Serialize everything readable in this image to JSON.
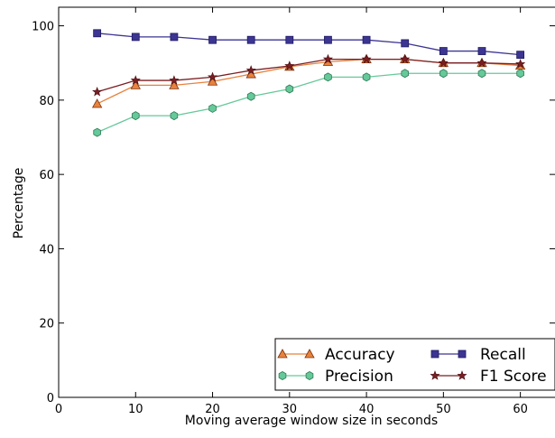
{
  "chart_data": {
    "type": "line",
    "title": "",
    "xlabel": "Moving average window size in seconds",
    "ylabel": "Percentage",
    "xlim": [
      0,
      60
    ],
    "ylim": [
      0,
      105
    ],
    "xticks": [
      0,
      10,
      20,
      30,
      40,
      50,
      60
    ],
    "yticks": [
      0,
      20,
      40,
      60,
      80,
      100
    ],
    "x_tick_labels": [
      "0",
      "10",
      "20",
      "30",
      "40",
      "50",
      "60"
    ],
    "y_tick_labels": [
      "0",
      "20",
      "40",
      "60",
      "80",
      "100"
    ],
    "grid": false,
    "legend_position": "bottom-right",
    "x": [
      5,
      10,
      15,
      20,
      25,
      30,
      35,
      40,
      45,
      50,
      55,
      60
    ],
    "series": [
      {
        "name": "Accuracy",
        "marker": "triangle",
        "color": "#e8823c",
        "edge_color": "#7a3210",
        "values": [
          79,
          84,
          84,
          85,
          87,
          89,
          90.3,
          91,
          91,
          90,
          90,
          89.3
        ]
      },
      {
        "name": "Recall",
        "marker": "square",
        "color": "#3d3592",
        "edge_color": "#1e1a60",
        "values": [
          98,
          97,
          97,
          96.2,
          96.2,
          96.2,
          96.2,
          96.2,
          95.3,
          93.2,
          93.2,
          92.2
        ]
      },
      {
        "name": "Precision",
        "marker": "hexagon",
        "color": "#66c99a",
        "edge_color": "#2f7a55",
        "values": [
          71.3,
          75.8,
          75.8,
          77.8,
          81,
          83,
          86.2,
          86.2,
          87.2,
          87.2,
          87.2,
          87.2
        ]
      },
      {
        "name": "F1 Score",
        "marker": "star",
        "color": "#7a1e22",
        "edge_color": "#4a0c10",
        "values": [
          82.2,
          85.3,
          85.3,
          86.2,
          88,
          89.2,
          91,
          91,
          91,
          90,
          90,
          89.7
        ]
      }
    ]
  }
}
